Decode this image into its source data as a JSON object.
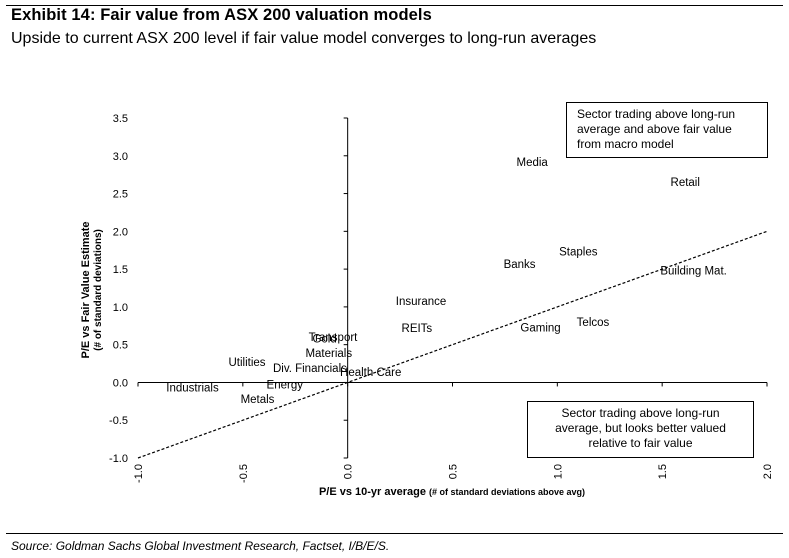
{
  "header": {
    "title": "Exhibit 14: Fair value from ASX 200 valuation models",
    "subtitle": "Upside to current ASX 200 level if fair value model converges to long-run averages"
  },
  "footer": {
    "source": "Source: Goldman Sachs Global Investment Research, Factset, I/B/E/S."
  },
  "annotations": {
    "top_right": [
      "Sector trading above long-run",
      "average and above fair value",
      "from macro model"
    ],
    "bottom_right": [
      "Sector trading above long-run",
      "average, but looks better valued",
      "relative to fair value"
    ]
  },
  "chart_data": {
    "type": "scatter",
    "title": "Exhibit 14: Fair value from ASX 200 valuation models",
    "xlabel": "P/E vs 10-yr average",
    "xlabel_note": "(# of standard deviations above avg)",
    "ylabel": "P/E vs Fair Value Estimate",
    "ylabel_note": "(# of standard deviations)",
    "xlim": [
      -1.0,
      2.0
    ],
    "ylim": [
      -1.0,
      3.5
    ],
    "x_ticks": [
      "-1.0",
      "-0.5",
      "0.0",
      "0.5",
      "1.0",
      "1.5",
      "2.0"
    ],
    "x_tick_values": [
      -1.0,
      -0.5,
      0.0,
      0.5,
      1.0,
      1.5,
      2.0
    ],
    "y_ticks": [
      "3.5",
      "3.0",
      "2.5",
      "2.0",
      "1.5",
      "1.0",
      "0.5",
      "0.0",
      "-0.5",
      "-1.0"
    ],
    "y_tick_values": [
      3.5,
      3.0,
      2.5,
      2.0,
      1.5,
      1.0,
      0.5,
      0.0,
      -0.5,
      -1.0
    ],
    "reference_line": {
      "style": "dashed",
      "x": [
        -1.0,
        2.0
      ],
      "y": [
        -1.0,
        2.0
      ]
    },
    "grid": false,
    "points": [
      {
        "label": "Media",
        "x": 0.88,
        "y": 2.92
      },
      {
        "label": "Retail",
        "x": 1.61,
        "y": 2.65
      },
      {
        "label": "Staples",
        "x": 1.1,
        "y": 1.73
      },
      {
        "label": "Banks",
        "x": 0.82,
        "y": 1.57
      },
      {
        "label": "Building Mat.",
        "x": 1.65,
        "y": 1.48
      },
      {
        "label": "Insurance",
        "x": 0.35,
        "y": 1.08
      },
      {
        "label": "REITs",
        "x": 0.33,
        "y": 0.72
      },
      {
        "label": "Telcos",
        "x": 1.17,
        "y": 0.8
      },
      {
        "label": "Gaming",
        "x": 0.92,
        "y": 0.73
      },
      {
        "label": "Gold",
        "x": -0.11,
        "y": 0.58
      },
      {
        "label": "Transport",
        "x": -0.07,
        "y": 0.6
      },
      {
        "label": "Materials",
        "x": -0.09,
        "y": 0.39
      },
      {
        "label": "Utilities",
        "x": -0.48,
        "y": 0.27
      },
      {
        "label": "Div. Financials",
        "x": -0.18,
        "y": 0.19
      },
      {
        "label": "Health Care",
        "x": 0.11,
        "y": 0.14
      },
      {
        "label": "Industrials",
        "x": -0.74,
        "y": -0.07
      },
      {
        "label": "Energy",
        "x": -0.3,
        "y": -0.03
      },
      {
        "label": "Metals",
        "x": -0.43,
        "y": -0.22
      }
    ]
  }
}
